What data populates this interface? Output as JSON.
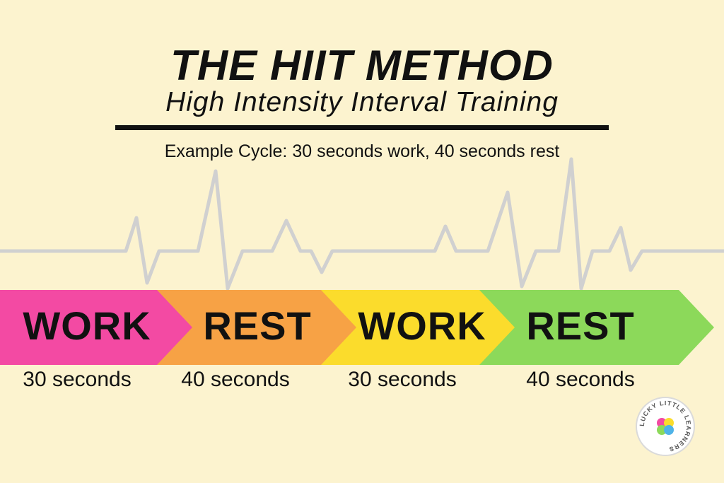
{
  "title": "THE HIIT METHOD",
  "subtitle": "High Intensity Interval Training",
  "example": "Example Cycle: 30 seconds work, 40 seconds rest",
  "segments": [
    {
      "label": "WORK",
      "duration": "30 seconds",
      "color": "#F34AA3"
    },
    {
      "label": "REST",
      "duration": "40 seconds",
      "color": "#F7A245"
    },
    {
      "label": "WORK",
      "duration": "30 seconds",
      "color": "#FBDC2C"
    },
    {
      "label": "REST",
      "duration": "40 seconds",
      "color": "#8CD95A"
    }
  ],
  "colors": {
    "background": "#FCF3CF",
    "heartbeat": "#D0D0D0",
    "text": "#111111"
  },
  "logo": {
    "text": "LUCKY LITTLE LEARNERS",
    "icon": "heart-clover-icon"
  }
}
